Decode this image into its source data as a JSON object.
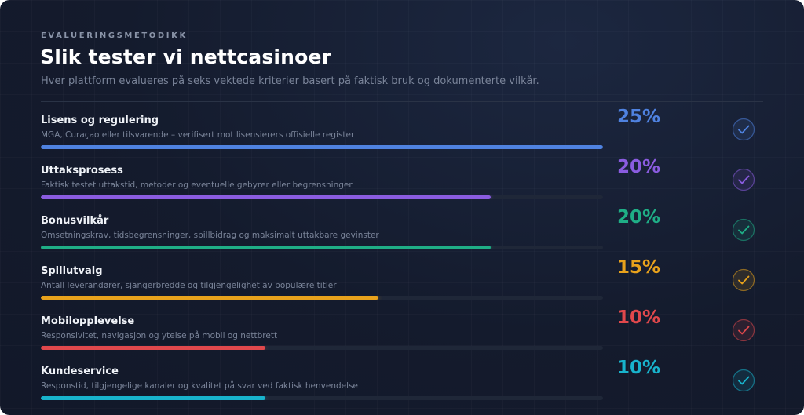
{
  "header": {
    "eyebrow": "EVALUERINGSMETODIKK",
    "title": "Slik tester vi nettcasinoer",
    "subtitle": "Hver plattform evalueres på seks vektede kriterier basert på faktisk bruk og dokumenterte vilkår."
  },
  "criteria": [
    {
      "name": "Lisens og regulering",
      "description": "MGA, Curaçao eller tilsvarende – verifisert mot lisensierers offisielle register",
      "weight_label": "25%",
      "fill_fraction": 1.0,
      "color": "#4f82e0",
      "icon": "check-circle-icon"
    },
    {
      "name": "Uttaksprosess",
      "description": "Faktisk testet uttakstid, metoder og eventuelle gebyrer eller begrensninger",
      "weight_label": "20%",
      "fill_fraction": 0.8,
      "color": "#8a5ce0",
      "icon": "check-circle-icon"
    },
    {
      "name": "Bonusvilkår",
      "description": "Omsetningskrav, tidsbegrensninger, spillbidrag og maksimalt uttakbare gevinster",
      "weight_label": "20%",
      "fill_fraction": 0.8,
      "color": "#1fae86",
      "icon": "check-circle-icon"
    },
    {
      "name": "Spillutvalg",
      "description": "Antall leverandører, sjangerbredde og tilgjengelighet av populære titler",
      "weight_label": "15%",
      "fill_fraction": 0.6,
      "color": "#e8a21c",
      "icon": "check-circle-icon"
    },
    {
      "name": "Mobilopplevelse",
      "description": "Responsivitet, navigasjon og ytelse på mobil og nettbrett",
      "weight_label": "10%",
      "fill_fraction": 0.4,
      "color": "#e0484c",
      "icon": "check-circle-icon"
    },
    {
      "name": "Kundeservice",
      "description": "Responstid, tilgjengelige kanaler og kvalitet på svar ved faktisk henvendelse",
      "weight_label": "10%",
      "fill_fraction": 0.4,
      "color": "#18b3cc",
      "icon": "check-circle-icon"
    }
  ]
}
